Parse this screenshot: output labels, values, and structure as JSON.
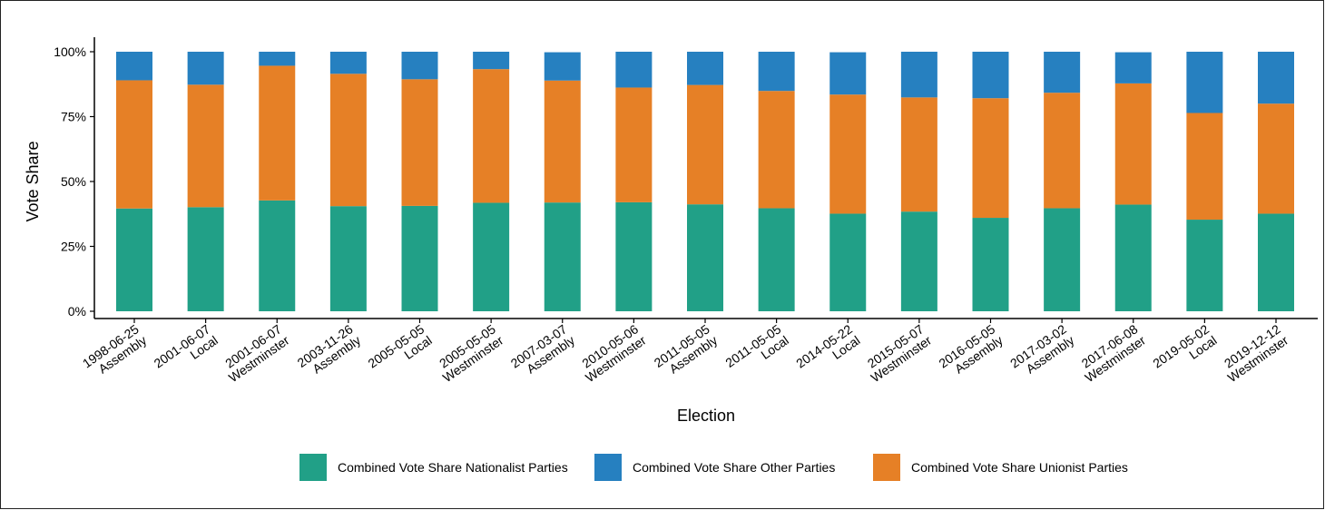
{
  "chart_data": {
    "type": "bar",
    "stacked": true,
    "title": "",
    "xlabel": "Election",
    "ylabel": "Vote Share",
    "ylim": [
      0,
      100
    ],
    "y_ticks": [
      "0%",
      "25%",
      "50%",
      "75%",
      "100%"
    ],
    "y_tick_values": [
      0,
      25,
      50,
      75,
      100
    ],
    "grid": false,
    "legend_position": "bottom",
    "categories": [
      [
        "1998-06-25",
        "Assembly"
      ],
      [
        "2001-06-07",
        "Local"
      ],
      [
        "2001-06-07",
        "Westminster"
      ],
      [
        "2003-11-26",
        "Assembly"
      ],
      [
        "2005-05-05",
        "Local"
      ],
      [
        "2005-05-05",
        "Westminster"
      ],
      [
        "2007-03-07",
        "Assembly"
      ],
      [
        "2010-05-06",
        "Westminster"
      ],
      [
        "2011-05-05",
        "Assembly"
      ],
      [
        "2011-05-05",
        "Local"
      ],
      [
        "2014-05-22",
        "Local"
      ],
      [
        "2015-05-07",
        "Westminster"
      ],
      [
        "2016-05-05",
        "Assembly"
      ],
      [
        "2017-03-02",
        "Assembly"
      ],
      [
        "2017-06-08",
        "Westminster"
      ],
      [
        "2019-05-02",
        "Local"
      ],
      [
        "2019-12-12",
        "Westminster"
      ]
    ],
    "series": [
      {
        "name": "Combined Vote Share Nationalist Parties",
        "color": "#21a087",
        "values": [
          39.6,
          40.1,
          42.7,
          40.5,
          40.6,
          41.8,
          41.9,
          42.0,
          41.2,
          39.7,
          37.6,
          38.4,
          36.0,
          39.7,
          41.1,
          35.3,
          37.6
        ]
      },
      {
        "name": "Combined Vote Share Unionist Parties",
        "color": "#e68026",
        "values": [
          49.4,
          47.2,
          51.9,
          51.0,
          48.8,
          51.5,
          47.0,
          44.2,
          46.0,
          45.2,
          45.9,
          44.0,
          46.1,
          44.5,
          46.7,
          41.1,
          42.4
        ]
      },
      {
        "name": "Combined Vote Share Other Parties",
        "color": "#2680c0",
        "values": [
          11.0,
          12.7,
          5.4,
          8.5,
          10.6,
          6.7,
          10.9,
          13.8,
          12.8,
          15.1,
          16.3,
          17.6,
          17.9,
          15.8,
          12.0,
          23.6,
          20.0
        ]
      }
    ],
    "legend": [
      {
        "label": "Combined Vote Share Nationalist Parties",
        "color": "#21a087"
      },
      {
        "label": "Combined Vote Share Other Parties",
        "color": "#2680c0"
      },
      {
        "label": "Combined Vote Share Unionist Parties",
        "color": "#e68026"
      }
    ]
  }
}
